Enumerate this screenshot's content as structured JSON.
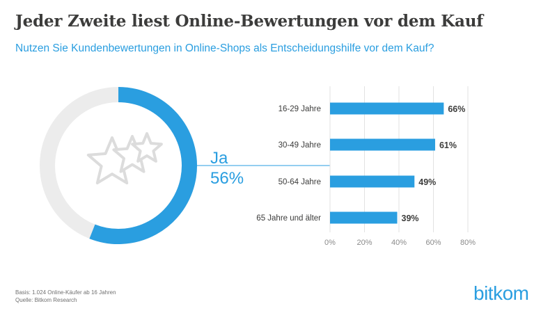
{
  "header": {
    "title": "Jeder Zweite liest Online-Bewertungen vor dem Kauf",
    "subtitle": "Nutzen Sie Kundenbewertungen in Online-Shops als Entscheidungshilfe vor dem Kauf?"
  },
  "chart_data": [
    {
      "type": "pie",
      "style": "donut",
      "slices": [
        {
          "label": "Ja",
          "value": 56,
          "value_label": "56%"
        },
        {
          "label": "",
          "value": 44
        }
      ],
      "colors": {
        "highlight": "#2a9ee0",
        "rest": "#ececec"
      },
      "icon": "stars-icon"
    },
    {
      "type": "bar",
      "orientation": "horizontal",
      "categories": [
        "16-29 Jahre",
        "30-49 Jahre",
        "50-64 Jahre",
        "65 Jahre und älter"
      ],
      "values": [
        66,
        61,
        49,
        39
      ],
      "value_labels": [
        "66%",
        "61%",
        "49%",
        "39%"
      ],
      "xlim": [
        0,
        80
      ],
      "xticks": [
        0,
        20,
        40,
        60,
        80
      ],
      "xtick_labels": [
        "0%",
        "20%",
        "40%",
        "60%",
        "80%"
      ],
      "grid": true,
      "colors": {
        "bar": "#2a9ee0"
      }
    }
  ],
  "footer": {
    "basis": "Basis: 1.024 Online-Käufer ab 16 Jahren",
    "source": "Quelle: Bitkom Research"
  },
  "logo": {
    "text": "bitkom",
    "color": "#2a9ee0"
  }
}
